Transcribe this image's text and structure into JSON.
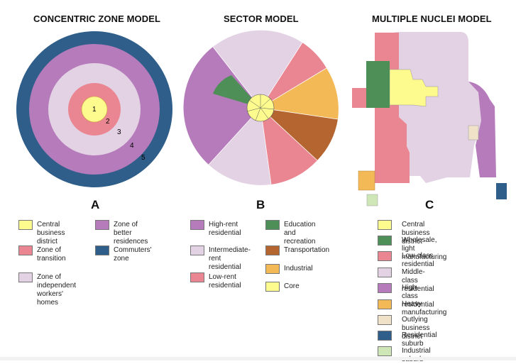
{
  "titles": {
    "concentric": "CONCENTRIC ZONE MODEL",
    "sector": "SECTOR  MODEL",
    "nuclei": "MULTIPLE NUCLEI MODEL"
  },
  "panel_letters": {
    "a": "A",
    "b": "B",
    "c": "C"
  },
  "colors": {
    "core_yellow": "#fdfb8e",
    "transition_pink": "#ea8691",
    "workers_lavender": "#e3d1e4",
    "better_purple": "#b57bbb",
    "commuters_blue": "#2e5e89",
    "education_green": "#4e8f57",
    "transport_brown": "#b5652f",
    "industrial_orange": "#f3b957",
    "outlying_beige": "#efe2c9",
    "industrial_suburb_green": "#cfe6b6"
  },
  "concentric_zone_numbers": [
    "1",
    "2",
    "3",
    "4",
    "5"
  ],
  "legend_a": {
    "central_business_district": "Central business\ndistrict",
    "zone_of_better_residences": "Zone of better\nresidences",
    "zone_of_transition": "Zone of\ntransition",
    "commuters_zone": "Commuters' zone",
    "zone_of_independent_workers_homes": "Zone of independent workers' homes"
  },
  "legend_b": {
    "high_rent_residential": "High-rent\nresidential",
    "intermediate_rent_residential": "Intermediate-\nrent residential",
    "low_rent_residential": "Low-rent\nresidential",
    "education_and_recreation": "Education and\nrecreation",
    "transportation": "Transportation",
    "industrial": "Industrial",
    "core": "Core"
  },
  "legend_c": [
    {
      "label": "Central business district",
      "color": "#fdfb8e"
    },
    {
      "label": "Wholesale, light manufacturing",
      "color": "#4e8f57"
    },
    {
      "label": "Low-class residential",
      "color": "#ea8691"
    },
    {
      "label": "Middle-class residential",
      "color": "#e3d1e4"
    },
    {
      "label": "High-class residential",
      "color": "#b57bbb"
    },
    {
      "label": "Heavy manufacturing",
      "color": "#f3b957"
    },
    {
      "label": "Outlying business district",
      "color": "#efe2c9"
    },
    {
      "label": "Residential suburb",
      "color": "#2e5e89"
    },
    {
      "label": "Industrial suburb",
      "color": "#cfe6b6"
    }
  ]
}
